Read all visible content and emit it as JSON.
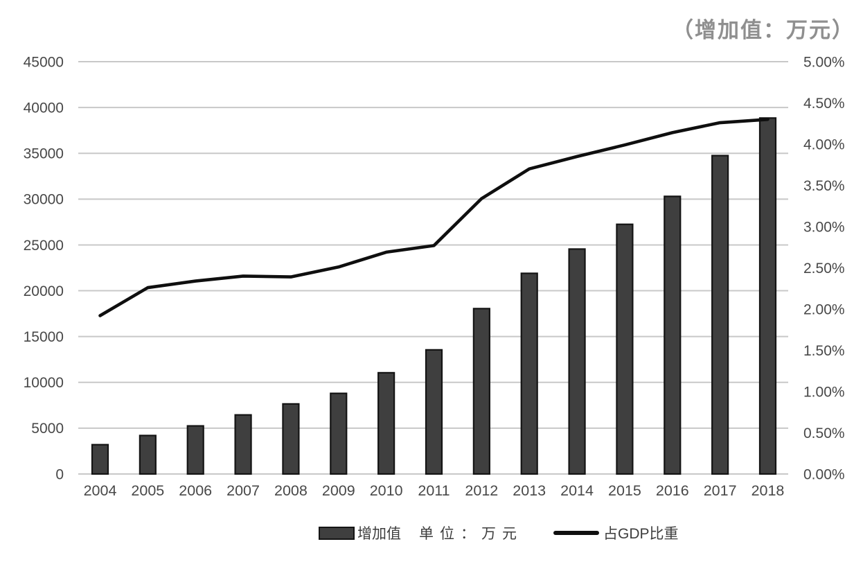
{
  "title": "（增加值：万元）",
  "legend": {
    "bar_label": "增加值",
    "unit_label": "单位：万元",
    "line_label": "占GDP比重"
  },
  "chart_data": {
    "type": "bar",
    "subtype": "combo-bar-line-dual-axis",
    "title": "（增加值：万元）",
    "categories": [
      "2004",
      "2005",
      "2006",
      "2007",
      "2008",
      "2009",
      "2010",
      "2011",
      "2012",
      "2013",
      "2014",
      "2015",
      "2016",
      "2017",
      "2018"
    ],
    "series": [
      {
        "name": "增加值",
        "type": "bar",
        "axis": "left",
        "unit": "万元",
        "values": [
          3200,
          4200,
          5250,
          6450,
          7650,
          8800,
          11050,
          13550,
          18050,
          21900,
          24550,
          27250,
          30300,
          34750,
          38850
        ]
      },
      {
        "name": "占GDP比重",
        "type": "line",
        "axis": "right",
        "unit": "%",
        "values": [
          1.92,
          2.26,
          2.34,
          2.4,
          2.39,
          2.51,
          2.69,
          2.77,
          3.34,
          3.7,
          3.85,
          3.99,
          4.14,
          4.26,
          4.3
        ]
      }
    ],
    "left_axis": {
      "min": 0,
      "max": 45000,
      "step": 5000,
      "tick_labels": [
        "45000",
        "40000",
        "35000",
        "30000",
        "25000",
        "20000",
        "15000",
        "10000",
        "5000",
        "0"
      ]
    },
    "right_axis": {
      "min": 0,
      "max": 5,
      "step": 0.5,
      "tick_labels": [
        "5.00%",
        "4.50%",
        "4.00%",
        "3.50%",
        "3.00%",
        "2.50%",
        "2.00%",
        "1.50%",
        "1.00%",
        "0.50%",
        "0.00%"
      ]
    },
    "grid": "horizontal",
    "legend_position": "bottom"
  },
  "colors": {
    "bar_fill": "#3f3f3f",
    "bar_border": "#141414",
    "line": "#0f0f0f",
    "gridline": "#c8c8c8",
    "axis_text": "#484848",
    "title_text": "#8f8f8f"
  }
}
